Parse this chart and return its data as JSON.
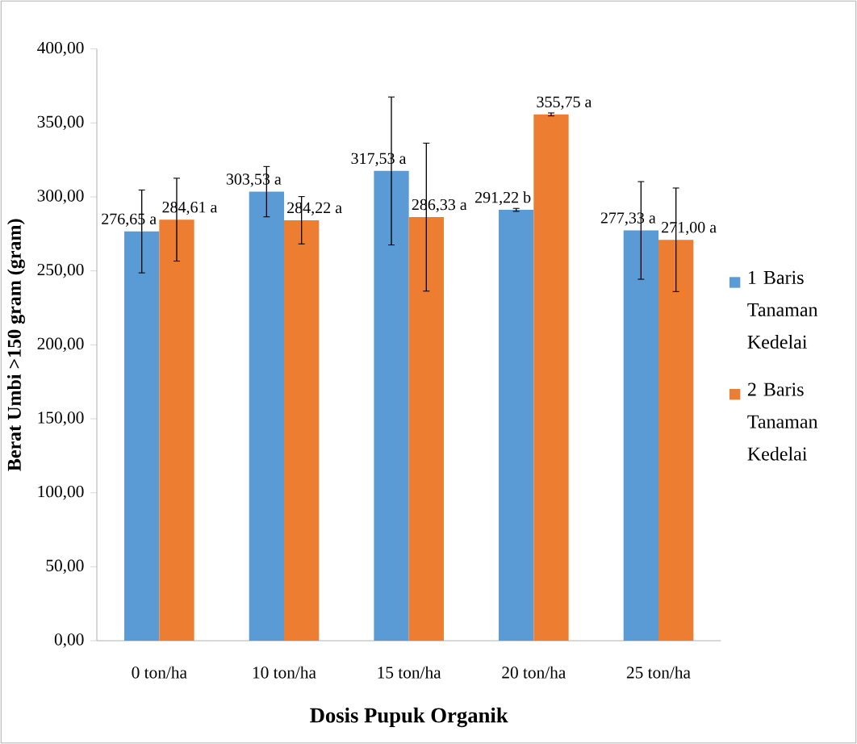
{
  "chart_data": {
    "type": "bar",
    "xlabel": "Dosis Pupuk Organik",
    "ylabel": "Berat Umbi >150 gram (gram)",
    "categories": [
      "0 ton/ha",
      "10 ton/ha",
      "15 ton/ha",
      "20 ton/ha",
      "25 ton/ha"
    ],
    "series": [
      {
        "name": "1 Baris Tanaman Kedelai",
        "color": "#5b9bd5",
        "values": [
          276.65,
          303.53,
          317.53,
          291.22,
          277.33
        ],
        "errors": [
          28,
          17,
          50,
          1,
          33
        ],
        "value_labels": [
          "276,65 a",
          "303,53 a",
          "317,53 a",
          "291,22 b",
          "277,33 a"
        ]
      },
      {
        "name": "2 Baris Tanaman Kedelai",
        "color": "#ed7d31",
        "values": [
          284.61,
          284.22,
          286.33,
          355.75,
          271.0
        ],
        "errors": [
          28,
          16,
          50,
          1,
          35
        ],
        "value_labels": [
          "284,61 a",
          "284,22 a",
          "286,33 a",
          "355,75 a",
          "271,00 a"
        ]
      }
    ],
    "ylim": [
      0,
      400
    ],
    "yticks": [
      {
        "value": 0,
        "label": "0,00"
      },
      {
        "value": 50,
        "label": "50,00"
      },
      {
        "value": 100,
        "label": "100,00"
      },
      {
        "value": 150,
        "label": "150,00"
      },
      {
        "value": 200,
        "label": "200,00"
      },
      {
        "value": 250,
        "label": "250,00"
      },
      {
        "value": 300,
        "label": "300,00"
      },
      {
        "value": 350,
        "label": "350,00"
      },
      {
        "value": 400,
        "label": "400,00"
      }
    ],
    "legend": "right",
    "grid": false
  }
}
